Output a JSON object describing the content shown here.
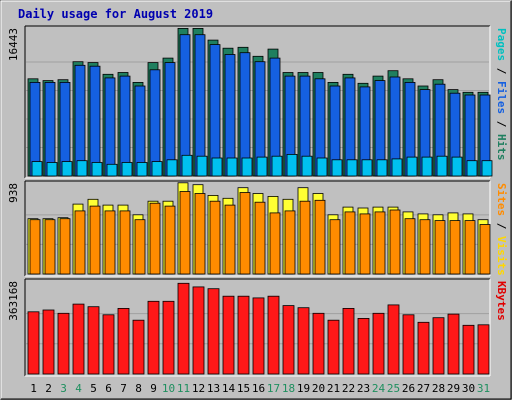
{
  "chart_data": {
    "type": "bar",
    "title": "Daily usage for August 2019",
    "categories": [
      "1",
      "2",
      "3",
      "4",
      "5",
      "6",
      "7",
      "8",
      "9",
      "10",
      "11",
      "12",
      "13",
      "14",
      "15",
      "16",
      "17",
      "18",
      "19",
      "20",
      "21",
      "22",
      "23",
      "24",
      "25",
      "26",
      "27",
      "28",
      "29",
      "30",
      "31"
    ],
    "weekend_days": [
      "3",
      "4",
      "10",
      "11",
      "17",
      "18",
      "24",
      "25",
      "31"
    ],
    "panels": [
      {
        "name": "top",
        "ylim": [
          0,
          16443
        ],
        "tick_label": "16443",
        "side_legend": [
          "Pages",
          "/",
          "Files",
          "/",
          "Hits"
        ],
        "side_legend_colors": [
          "#00c0c0",
          "#000000",
          "#1560e0",
          "#000000",
          "#1f7f5f"
        ],
        "series": [
          {
            "name": "Hits",
            "color": "#1f7f5f",
            "values": [
              10800,
              10600,
              10700,
              12700,
              12600,
              11300,
              11500,
              10400,
              12600,
              13100,
              16400,
              16400,
              15100,
              14200,
              14300,
              13300,
              14100,
              11500,
              11500,
              11500,
              10400,
              11300,
              10300,
              11100,
              11700,
              10800,
              10000,
              10700,
              9600,
              9300,
              9300
            ]
          },
          {
            "name": "Files",
            "color": "#1560e0",
            "values": [
              10400,
              10400,
              10400,
              12300,
              12200,
              10900,
              11100,
              10000,
              11800,
              12600,
              15700,
              15700,
              14600,
              13500,
              13700,
              12700,
              13100,
              11100,
              11100,
              10800,
              10000,
              10900,
              9900,
              10600,
              11000,
              10400,
              9600,
              10200,
              9200,
              9000,
              9000
            ]
          },
          {
            "name": "Pages",
            "color": "#00c0f0",
            "values": [
              1600,
              1500,
              1600,
              1700,
              1500,
              1300,
              1500,
              1500,
              1600,
              1800,
              2300,
              2200,
              2000,
              2000,
              2000,
              2100,
              2200,
              2400,
              2200,
              2000,
              1800,
              1800,
              1800,
              1800,
              1900,
              2100,
              2100,
              2200,
              2100,
              1700,
              1700
            ]
          }
        ]
      },
      {
        "name": "middle",
        "ylim": [
          0,
          938
        ],
        "tick_label": "938",
        "side_legend": [
          "Sites",
          "/",
          "Visits"
        ],
        "side_legend_colors": [
          "#ff8c00",
          "#000000",
          "#ffd700"
        ],
        "series": [
          {
            "name": "Visits",
            "color": "#ffff33",
            "values": [
              570,
              570,
              580,
              720,
              770,
              710,
              710,
              610,
              750,
              750,
              940,
              920,
              810,
              780,
              890,
              830,
              800,
              770,
              890,
              830,
              610,
              690,
              680,
              690,
              690,
              640,
              620,
              610,
              630,
              620,
              560
            ]
          },
          {
            "name": "Sites",
            "color": "#ff8c00",
            "values": [
              560,
              560,
              570,
              650,
              700,
              650,
              650,
              560,
              730,
              700,
              850,
              830,
              750,
              710,
              840,
              740,
              630,
              650,
              750,
              760,
              560,
              640,
              620,
              640,
              660,
              570,
              560,
              550,
              550,
              550,
              510
            ]
          }
        ]
      },
      {
        "name": "bottom",
        "ylim": [
          0,
          363168
        ],
        "tick_label": "363168",
        "side_legend": [
          "KBytes"
        ],
        "side_legend_colors": [
          "#e00000"
        ],
        "series": [
          {
            "name": "KBytes",
            "color": "#ff1818",
            "values": [
              243000,
              250000,
              237000,
              273000,
              263000,
              231000,
              256000,
              210000,
              284000,
              284000,
              354000,
              340000,
              333000,
              304000,
              304000,
              297000,
              304000,
              267000,
              259000,
              237000,
              210000,
              256000,
              217000,
              237000,
              270000,
              231000,
              202000,
              220000,
              234000,
              190000,
              192000
            ]
          }
        ]
      }
    ]
  }
}
